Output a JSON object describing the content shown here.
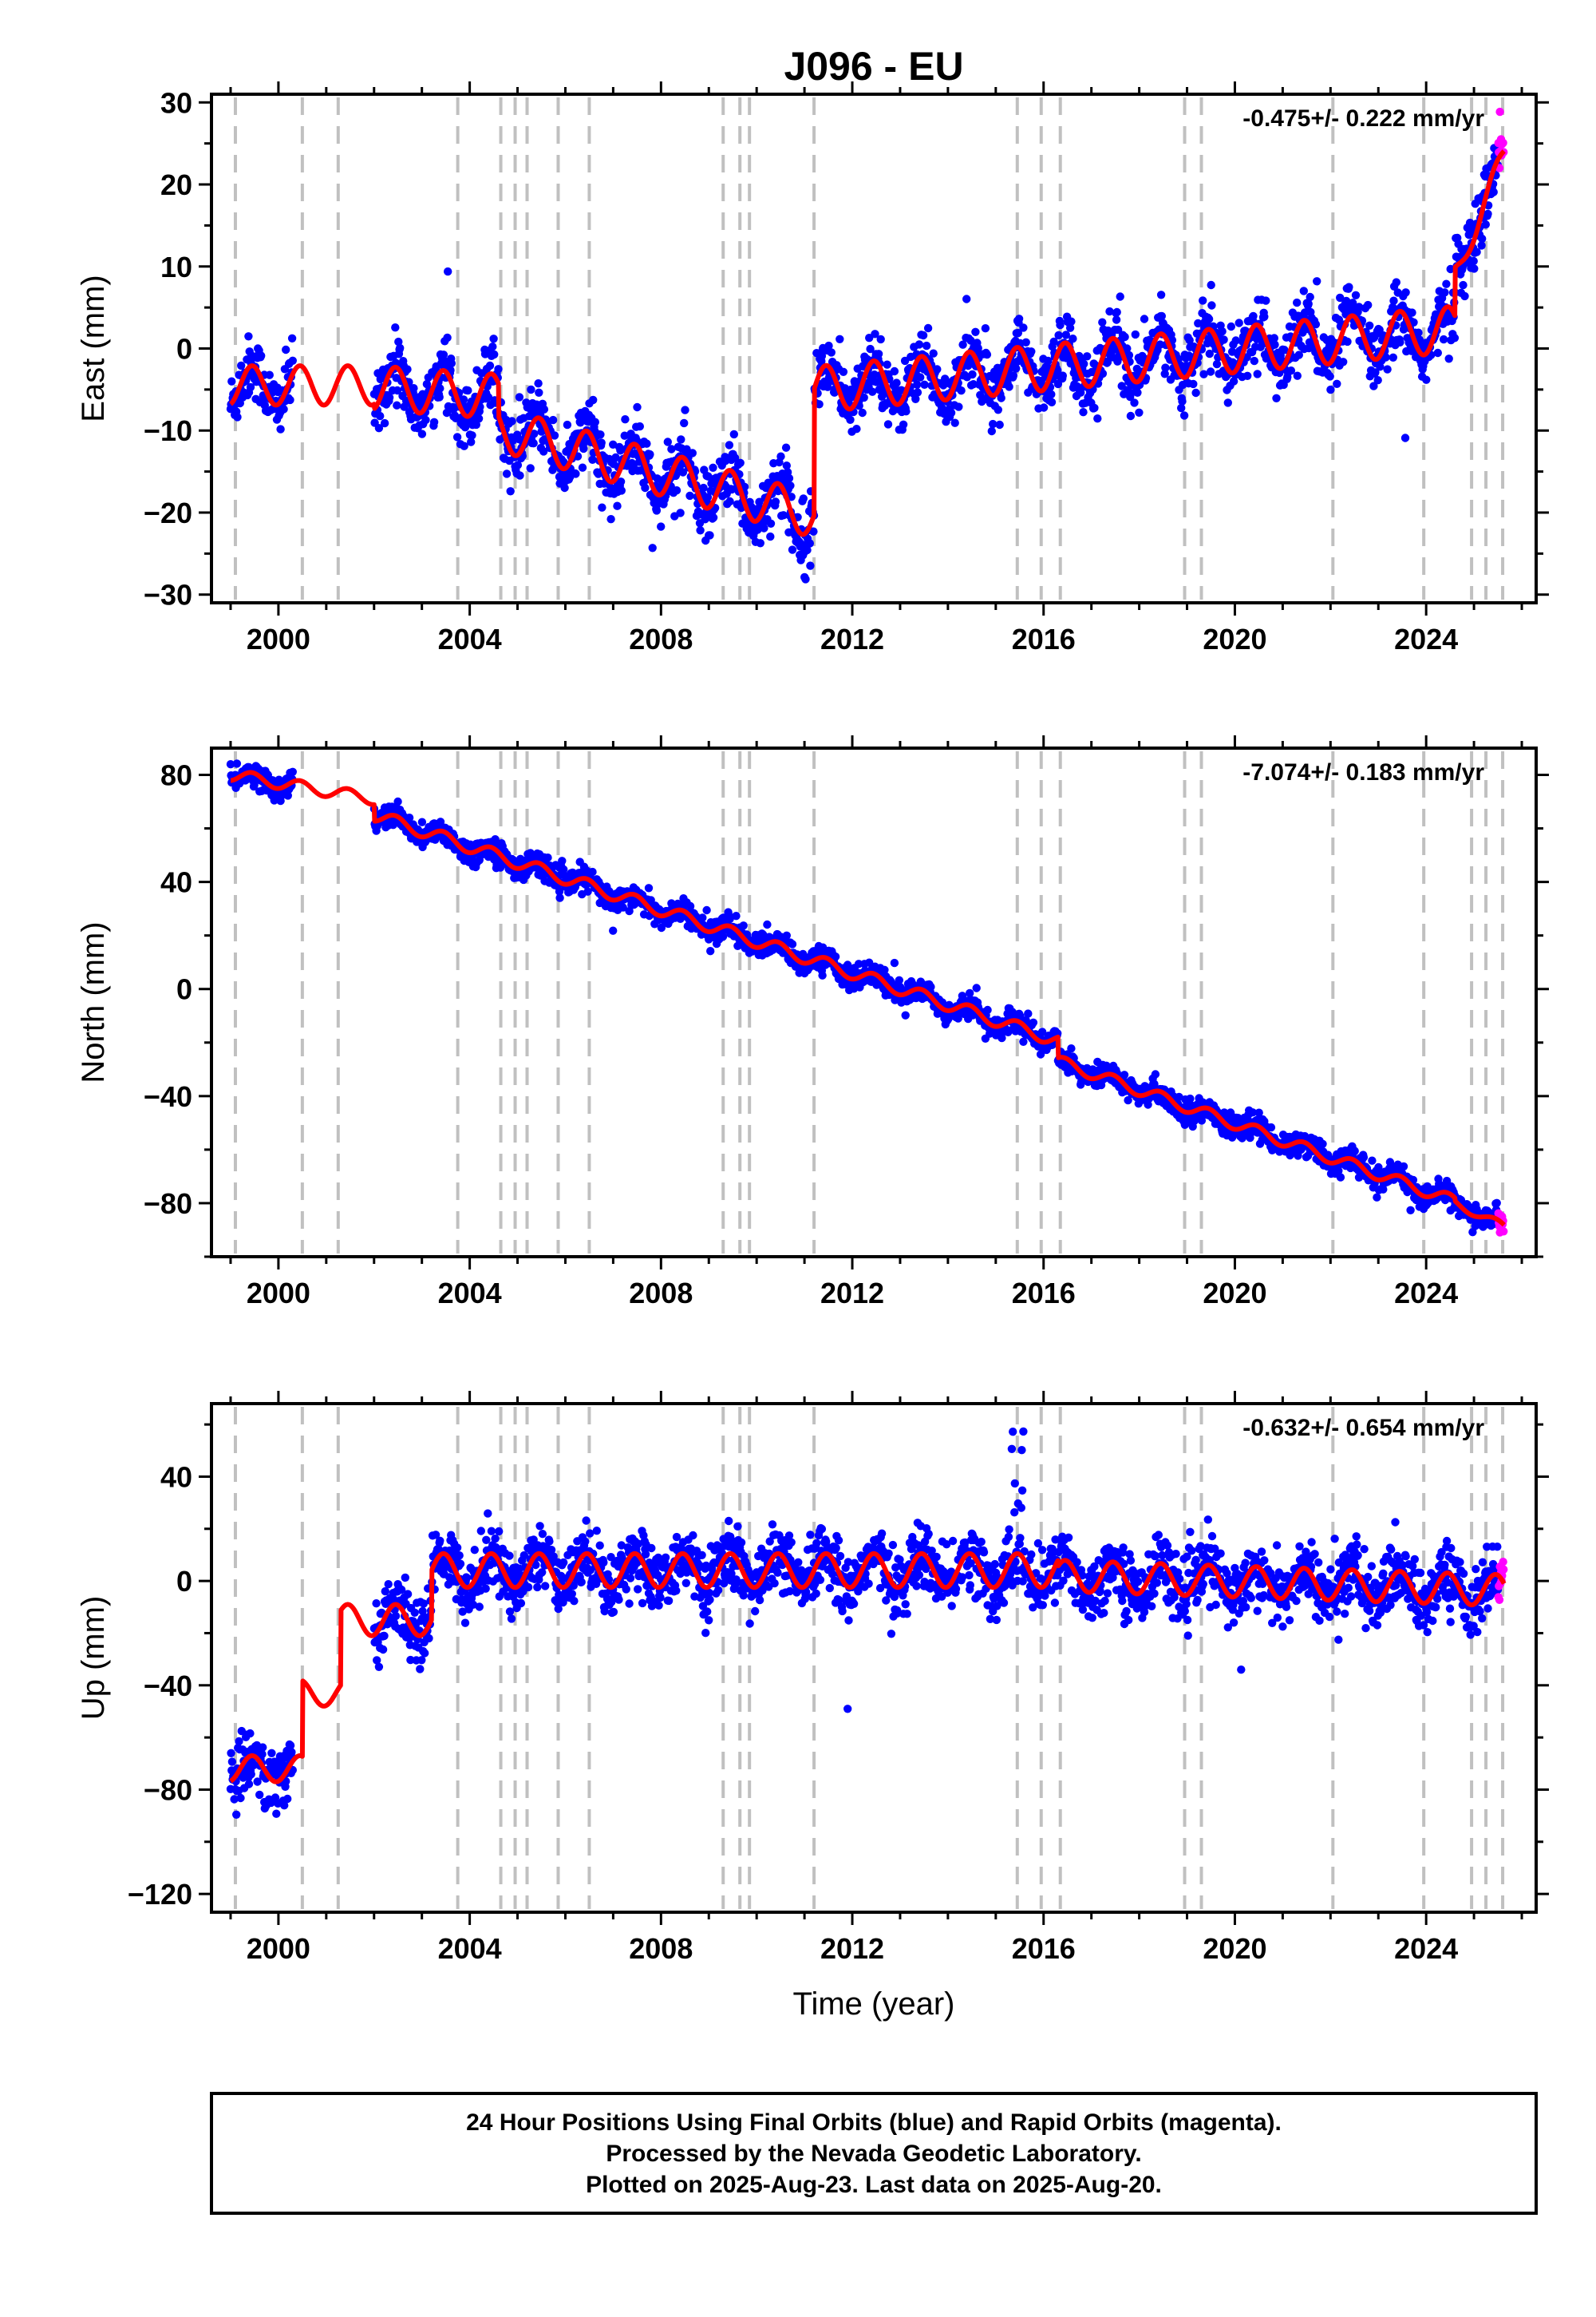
{
  "title": "J096 - EU",
  "chart_data": [
    {
      "type": "scatter",
      "ylabel": "East (mm)",
      "xlabel": "",
      "rate": "-0.475+/- 0.222 mm/yr",
      "xlim": [
        1998.6,
        2026.3
      ],
      "ylim": [
        -31,
        31
      ],
      "xticks": [
        2000,
        2004,
        2008,
        2012,
        2016,
        2020,
        2024
      ],
      "yticks": [
        30,
        20,
        10,
        0,
        -10,
        -20,
        -30
      ],
      "ytick_labels": [
        "30",
        "20",
        "10",
        "0",
        "−10",
        "−20",
        "−30"
      ],
      "model_segments": [
        {
          "start": 1999.0,
          "end": 2000.5,
          "offset": -4.5,
          "rate": 0.0,
          "amp": 2.4
        },
        {
          "start": 2000.5,
          "end": 2002.0,
          "offset": -4.5,
          "rate": 0.0,
          "amp": 2.4
        },
        {
          "start": 2002.0,
          "end": 2004.6,
          "offset": -4.8,
          "rate": -0.4,
          "amp": 2.7
        },
        {
          "start": 2004.6,
          "end": 2011.2,
          "offset": -9.8,
          "rate": -1.6,
          "amp": 2.7
        },
        {
          "start": 2011.2,
          "end": 2024.6,
          "offset": -5.0,
          "rate": 0.55,
          "amp": 2.8
        },
        {
          "start": 2024.6,
          "end": 2025.65,
          "offset": 9.0,
          "rate": 14.0,
          "amp": 1.5
        }
      ],
      "observation_gaps": [
        [
          2000.3,
          2002.0
        ]
      ],
      "rapid_start": 2025.5,
      "noise": 1.9
    },
    {
      "type": "scatter",
      "ylabel": "North (mm)",
      "xlabel": "",
      "rate": "-7.074+/- 0.183 mm/yr",
      "xlim": [
        1998.6,
        2026.3
      ],
      "ylim": [
        -100,
        90
      ],
      "xticks": [
        2000,
        2004,
        2008,
        2012,
        2016,
        2020,
        2024
      ],
      "yticks": [
        80,
        40,
        0,
        -40,
        -80
      ],
      "ytick_labels": [
        "80",
        "40",
        "0",
        "−40",
        "−80"
      ],
      "model_segments": [
        {
          "start": 1999.0,
          "end": 2002.0,
          "offset": 80.0,
          "rate": -3.0,
          "amp": 2.2
        },
        {
          "start": 2002.0,
          "end": 2016.3,
          "offset": 65.0,
          "rate": -5.9,
          "amp": 2.4
        },
        {
          "start": 2016.3,
          "end": 2024.6,
          "offset": -27.0,
          "rate": -6.3,
          "amp": 2.2
        },
        {
          "start": 2024.6,
          "end": 2025.65,
          "offset": -80.0,
          "rate": -8.5,
          "amp": 1.5
        }
      ],
      "observation_gaps": [
        [
          2000.3,
          2002.0
        ]
      ],
      "rapid_start": 2025.5,
      "noise": 2.2
    },
    {
      "type": "scatter",
      "ylabel": "Up (mm)",
      "xlabel": "Time (year)",
      "rate": "-0.632+/- 0.654 mm/yr",
      "xlim": [
        1998.6,
        2026.3
      ],
      "ylim": [
        -127,
        68
      ],
      "xticks": [
        2000,
        2004,
        2008,
        2012,
        2016,
        2020,
        2024
      ],
      "yticks": [
        40,
        0,
        -40,
        -80,
        -120
      ],
      "ytick_labels": [
        "40",
        "0",
        "−40",
        "−80",
        "−120"
      ],
      "model_segments": [
        {
          "start": 1999.0,
          "end": 2000.5,
          "offset": -72.0,
          "rate": 0.0,
          "amp": 5.0
        },
        {
          "start": 2000.5,
          "end": 2001.3,
          "offset": -43.0,
          "rate": 0.0,
          "amp": 5.0
        },
        {
          "start": 2001.3,
          "end": 2003.2,
          "offset": -15.0,
          "rate": 0.0,
          "amp": 6.0
        },
        {
          "start": 2003.2,
          "end": 2016.3,
          "offset": 4.0,
          "rate": 0.0,
          "amp": 6.5
        },
        {
          "start": 2016.3,
          "end": 2025.65,
          "offset": 2.0,
          "rate": -0.6,
          "amp": 6.0
        }
      ],
      "observation_gaps": [
        [
          2000.3,
          2002.0
        ]
      ],
      "rapid_start": 2025.5,
      "noise": 6.0
    }
  ],
  "equipment_changes": [
    1999.1,
    2000.5,
    2001.25,
    2003.75,
    2004.65,
    2004.95,
    2005.2,
    2005.85,
    2006.5,
    2009.3,
    2009.65,
    2009.85,
    2011.2,
    2015.45,
    2015.95,
    2016.35,
    2018.95,
    2019.3,
    2022.05,
    2023.95,
    2024.95,
    2025.25,
    2025.6
  ],
  "colors": {
    "final_orbits": "#0000ff",
    "rapid_orbits": "#ff00ff",
    "model": "#ff0000",
    "event_lines": "#c0c0c0"
  },
  "footer": {
    "line1": "24 Hour Positions Using Final Orbits (blue) and Rapid Orbits (magenta).",
    "line2": "Processed by the Nevada Geodetic Laboratory.",
    "line3": "Plotted on 2025-Aug-23. Last data on 2025-Aug-20."
  }
}
